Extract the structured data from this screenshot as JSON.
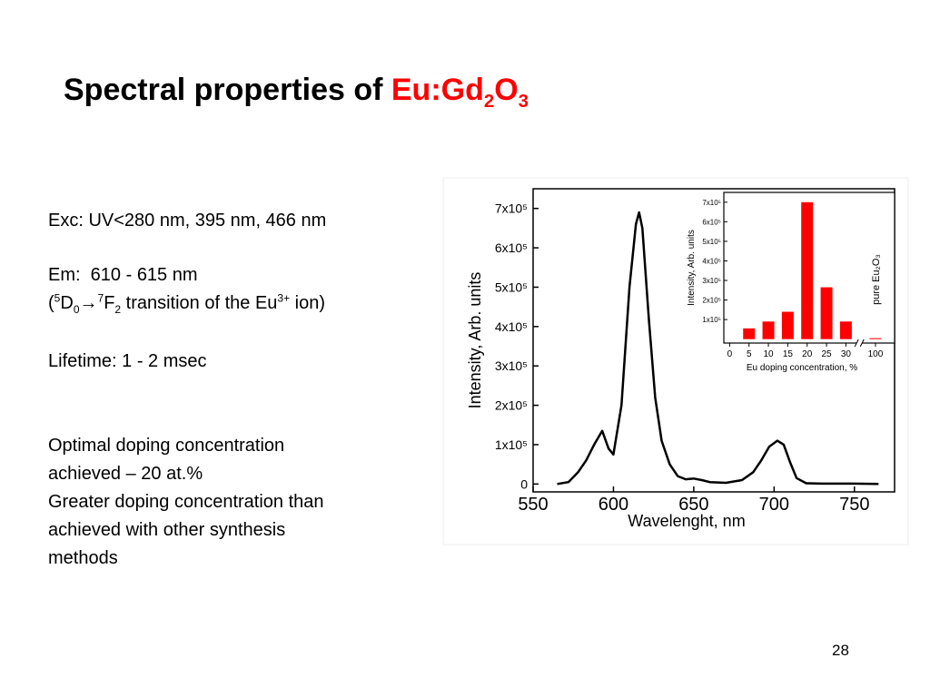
{
  "title": {
    "text": "Spectral properties of",
    "formula": [
      "Eu:Gd",
      "2",
      "O",
      "3"
    ]
  },
  "body": {
    "excitation": "Exc: UV<280 nm, 395 nm, 466 nm",
    "emission": "Em:  610 - 615 nm",
    "transition": [
      "(",
      "5",
      "D",
      "0",
      "→",
      "7",
      "F",
      "2",
      " transition of the Eu",
      "3+",
      " ion)"
    ],
    "lifetime": "Lifetime: 1 - 2 msec",
    "optimal": [
      "Optimal doping concentration",
      "achieved – 20 at.%"
    ],
    "greater": [
      "Greater doping concentration than",
      "achieved with other synthesis",
      "methods"
    ]
  },
  "page_number": "28",
  "chart_data": [
    {
      "type": "line",
      "x_label": "Wavelenght, nm",
      "y_label": "Intensity, Arb. units",
      "x": [
        565,
        572,
        578,
        583,
        588,
        593,
        597,
        600,
        605,
        610,
        614,
        616,
        618,
        622,
        626,
        630,
        635,
        640,
        645,
        650,
        655,
        660,
        670,
        680,
        687,
        692,
        697,
        702,
        706,
        710,
        714,
        720,
        730,
        750,
        765
      ],
      "series": [
        {
          "color": "#000000",
          "values": [
            0,
            5000,
            30000,
            60000,
            100000,
            135000,
            90000,
            75000,
            200000,
            500000,
            660000,
            690000,
            650000,
            420000,
            220000,
            110000,
            50000,
            20000,
            12000,
            14000,
            10000,
            5000,
            3000,
            10000,
            30000,
            60000,
            95000,
            110000,
            100000,
            55000,
            15000,
            2000,
            1000,
            1000,
            0
          ]
        }
      ],
      "xlim": [
        550,
        775
      ],
      "xticks": [
        550,
        600,
        650,
        700,
        750
      ],
      "ylim": [
        -20000,
        750000
      ],
      "yticks": [
        0,
        {
          "value": 100000,
          "label": "1x10⁵"
        },
        {
          "value": 200000,
          "label": "2x10⁵"
        },
        {
          "value": 300000,
          "label": "3x10⁵"
        },
        {
          "value": 400000,
          "label": "4x10⁵"
        },
        {
          "value": 500000,
          "label": "5x10⁵"
        },
        {
          "value": 600000,
          "label": "6x10⁵"
        },
        {
          "value": 700000,
          "label": "7x10⁵"
        }
      ]
    },
    {
      "type": "bar",
      "x_label": "Eu doping concentration, %",
      "y_label": "Intensity, Arb. units",
      "annotation": "pure Eu₂O₃",
      "x": [
        5,
        10,
        15,
        20,
        25,
        30,
        100
      ],
      "values": [
        55000,
        90000,
        140000,
        700000,
        265000,
        90000,
        5000
      ],
      "color": "#ff0000",
      "xlim": [
        -1.5,
        104
      ],
      "xbreak": [
        33,
        97
      ],
      "xticks": [
        0,
        5,
        10,
        15,
        20,
        25,
        30,
        100
      ],
      "ylim": [
        -20000,
        750000
      ],
      "yticks": [
        {
          "value": 100000,
          "label": "1x10⁵"
        },
        {
          "value": 200000,
          "label": "2x10⁵"
        },
        {
          "value": 300000,
          "label": "3x10⁵"
        },
        {
          "value": 400000,
          "label": "4x10⁵"
        },
        {
          "value": 500000,
          "label": "5x10⁵"
        },
        {
          "value": 600000,
          "label": "6x10⁵"
        },
        {
          "value": 700000,
          "label": "7x10⁵"
        }
      ]
    }
  ]
}
